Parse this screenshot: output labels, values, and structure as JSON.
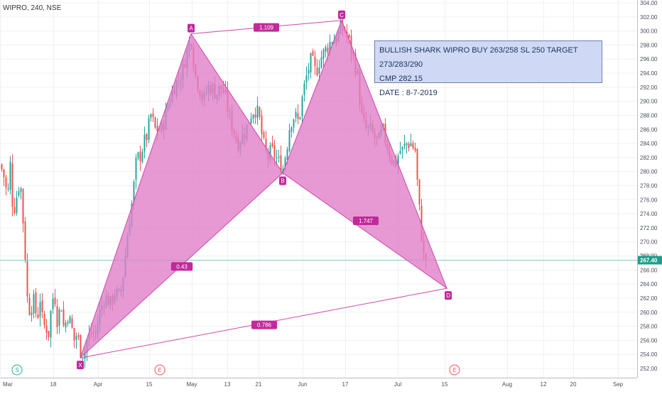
{
  "header": {
    "symbol_label": "WIPRO, 240, NSE"
  },
  "note": {
    "line1": "BULLISH SHARK WIPRO BUY 263/258 SL 250 TARGET 273/283/290",
    "line2": "CMP 282.15",
    "line3": "DATE : 8-7-2019"
  },
  "colors": {
    "up": "#26a69a",
    "down": "#ef5350",
    "pattern_fill": "#e080c8",
    "pattern_line": "#d048a8",
    "note_bg": "#cfd9f5",
    "price_line": "#7fd0c8",
    "price_label_bg": "#1e9e8a"
  },
  "chart_data": {
    "type": "candlestick",
    "ylim": [
      251.0,
      304.0
    ],
    "yticks": [
      252,
      254,
      256,
      258,
      260,
      262,
      264,
      266,
      268,
      270,
      272,
      274,
      276,
      278,
      280,
      282,
      284,
      286,
      288,
      290,
      292,
      294,
      296,
      298,
      300,
      302,
      304
    ],
    "xticks": [
      {
        "label": "Mar",
        "t": 0
      },
      {
        "label": "18",
        "t": 75
      },
      {
        "label": "Apr",
        "t": 138
      },
      {
        "label": "15",
        "t": 210
      },
      {
        "label": "May",
        "t": 270
      },
      {
        "label": "13",
        "t": 320
      },
      {
        "label": "21",
        "t": 364
      },
      {
        "label": "Jun",
        "t": 426
      },
      {
        "label": "17",
        "t": 486
      },
      {
        "label": "Jul",
        "t": 560
      },
      {
        "label": "15",
        "t": 626
      },
      {
        "label": "Aug",
        "t": 714
      },
      {
        "label": "12",
        "t": 765
      },
      {
        "label": "20",
        "t": 807
      },
      {
        "label": "Sep",
        "t": 870
      }
    ],
    "last_price": 267.4,
    "last_price_label": "267.40",
    "hidden_price_label": "268.00",
    "pattern_points": [
      {
        "name": "X",
        "t": 113,
        "price": 253.5
      },
      {
        "name": "A",
        "t": 269,
        "price": 299.6
      },
      {
        "name": "B",
        "t": 398,
        "price": 279.8
      },
      {
        "name": "C",
        "t": 481,
        "price": 301.5
      },
      {
        "name": "D",
        "t": 629,
        "price": 263.4
      }
    ],
    "ratios": [
      {
        "label": "1.109",
        "t": 375,
        "price": 300.5
      },
      {
        "label": "0.43",
        "t": 256,
        "price": 266.5
      },
      {
        "label": "1.747",
        "t": 515,
        "price": 273.0
      },
      {
        "label": "0.786",
        "t": 372,
        "price": 258.2
      }
    ],
    "events": [
      {
        "label": "S",
        "t": 24
      },
      {
        "label": "E",
        "t": 225
      },
      {
        "label": "E",
        "t": 640
      }
    ],
    "anchor_closes": [
      [
        0,
        281
      ],
      [
        6,
        279
      ],
      [
        10,
        276
      ],
      [
        14,
        281
      ],
      [
        18,
        274
      ],
      [
        22,
        276
      ],
      [
        28,
        279
      ],
      [
        34,
        270
      ],
      [
        38,
        262
      ],
      [
        42,
        260
      ],
      [
        46,
        262
      ],
      [
        52,
        259
      ],
      [
        56,
        262
      ],
      [
        60,
        258
      ],
      [
        64,
        258
      ],
      [
        68,
        257
      ],
      [
        72,
        261
      ],
      [
        76,
        263
      ],
      [
        80,
        259
      ],
      [
        86,
        261
      ],
      [
        90,
        257
      ],
      [
        94,
        260
      ],
      [
        100,
        258
      ],
      [
        104,
        256
      ],
      [
        108,
        257
      ],
      [
        113,
        254.5
      ],
      [
        118,
        254
      ],
      [
        122,
        256
      ],
      [
        128,
        257
      ],
      [
        134,
        257
      ],
      [
        140,
        260
      ],
      [
        146,
        262
      ],
      [
        150,
        262
      ],
      [
        156,
        261
      ],
      [
        160,
        263
      ],
      [
        168,
        262
      ],
      [
        174,
        266
      ],
      [
        180,
        272
      ],
      [
        186,
        276
      ],
      [
        192,
        282
      ],
      [
        196,
        282
      ],
      [
        202,
        284
      ],
      [
        206,
        285
      ],
      [
        212,
        288
      ],
      [
        218,
        286
      ],
      [
        222,
        286
      ],
      [
        228,
        286
      ],
      [
        232,
        288
      ],
      [
        238,
        290
      ],
      [
        244,
        292
      ],
      [
        250,
        293
      ],
      [
        256,
        294
      ],
      [
        260,
        296
      ],
      [
        266,
        298
      ],
      [
        269,
        299
      ],
      [
        274,
        294
      ],
      [
        280,
        292
      ],
      [
        286,
        290
      ],
      [
        292,
        292
      ],
      [
        298,
        292
      ],
      [
        304,
        291
      ],
      [
        310,
        292
      ],
      [
        316,
        291
      ],
      [
        322,
        288
      ],
      [
        328,
        286
      ],
      [
        334,
        284
      ],
      [
        340,
        285
      ],
      [
        346,
        286
      ],
      [
        352,
        288
      ],
      [
        358,
        289
      ],
      [
        364,
        288
      ],
      [
        370,
        284
      ],
      [
        376,
        282
      ],
      [
        382,
        283
      ],
      [
        388,
        282
      ],
      [
        394,
        281
      ],
      [
        398,
        280.5
      ],
      [
        404,
        284
      ],
      [
        408,
        287
      ],
      [
        414,
        288
      ],
      [
        420,
        287
      ],
      [
        426,
        291
      ],
      [
        432,
        294
      ],
      [
        438,
        296
      ],
      [
        444,
        294
      ],
      [
        450,
        296
      ],
      [
        456,
        297
      ],
      [
        462,
        298
      ],
      [
        468,
        299
      ],
      [
        474,
        299
      ],
      [
        480,
        300.5
      ],
      [
        486,
        300
      ],
      [
        492,
        298
      ],
      [
        498,
        296
      ],
      [
        504,
        293
      ],
      [
        508,
        288
      ],
      [
        514,
        286
      ],
      [
        520,
        286
      ],
      [
        526,
        285
      ],
      [
        532,
        284
      ],
      [
        538,
        286
      ],
      [
        544,
        284
      ],
      [
        550,
        282
      ],
      [
        556,
        281
      ],
      [
        562,
        283
      ],
      [
        566,
        283
      ],
      [
        572,
        284
      ],
      [
        578,
        284
      ],
      [
        584,
        283
      ],
      [
        588,
        277
      ],
      [
        592,
        272
      ],
      [
        596,
        268
      ],
      [
        600,
        267.4
      ]
    ]
  }
}
